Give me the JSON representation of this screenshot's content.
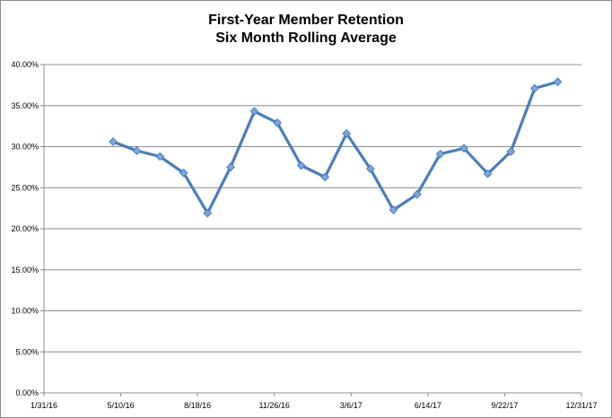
{
  "chart_data": {
    "type": "line",
    "title": [
      "First-Year Member Retention",
      "Six Month Rolling Average"
    ],
    "xlabel": "",
    "ylabel": "",
    "x_axis": {
      "kind": "date",
      "min": "2016-01-31",
      "max": "2017-12-31",
      "tick_labels": [
        "1/31/16",
        "5/10/16",
        "8/18/16",
        "11/26/16",
        "3/6/17",
        "6/14/17",
        "9/22/17",
        "12/31/17"
      ]
    },
    "y_axis": {
      "min": 0,
      "max": 40,
      "step": 5,
      "tick_labels": [
        "0.00%",
        "5.00%",
        "10.00%",
        "15.00%",
        "20.00%",
        "25.00%",
        "30.00%",
        "35.00%",
        "40.00%"
      ]
    },
    "grid": "horizontal",
    "legend": "none",
    "series": [
      {
        "color": "#4a7ebb",
        "marker_color": "#7fa6dc",
        "points": [
          {
            "x": "2016-04-30",
            "y": 30.6
          },
          {
            "x": "2016-05-31",
            "y": 29.5
          },
          {
            "x": "2016-06-30",
            "y": 28.8
          },
          {
            "x": "2016-07-31",
            "y": 26.8
          },
          {
            "x": "2016-08-31",
            "y": 21.9
          },
          {
            "x": "2016-09-30",
            "y": 27.5
          },
          {
            "x": "2016-10-31",
            "y": 34.3
          },
          {
            "x": "2016-11-30",
            "y": 32.9
          },
          {
            "x": "2016-12-31",
            "y": 27.7
          },
          {
            "x": "2017-01-31",
            "y": 26.3
          },
          {
            "x": "2017-02-28",
            "y": 31.6
          },
          {
            "x": "2017-03-31",
            "y": 27.3
          },
          {
            "x": "2017-04-30",
            "y": 22.3
          },
          {
            "x": "2017-05-31",
            "y": 24.2
          },
          {
            "x": "2017-06-30",
            "y": 29.1
          },
          {
            "x": "2017-07-31",
            "y": 29.8
          },
          {
            "x": "2017-08-31",
            "y": 26.7
          },
          {
            "x": "2017-09-30",
            "y": 29.4
          },
          {
            "x": "2017-10-31",
            "y": 37.1
          },
          {
            "x": "2017-11-30",
            "y": 37.9
          }
        ]
      }
    ]
  }
}
